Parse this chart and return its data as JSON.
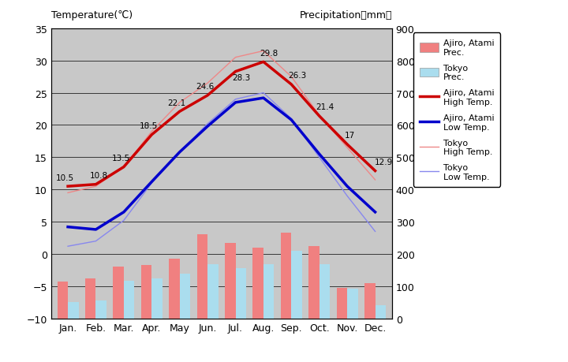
{
  "months": [
    "Jan.",
    "Feb.",
    "Mar.",
    "Apr.",
    "May",
    "Jun.",
    "Jul.",
    "Aug.",
    "Sep.",
    "Oct.",
    "Nov.",
    "Dec."
  ],
  "ajiro_high_temp": [
    10.5,
    10.8,
    13.5,
    18.5,
    22.1,
    24.6,
    28.3,
    29.8,
    26.3,
    21.4,
    17.0,
    12.9
  ],
  "ajiro_low_temp": [
    4.2,
    3.8,
    6.5,
    11.2,
    15.8,
    19.8,
    23.5,
    24.2,
    20.8,
    15.5,
    10.5,
    6.5
  ],
  "tokyo_high_temp": [
    9.5,
    10.5,
    13.5,
    19.0,
    23.5,
    26.5,
    30.5,
    31.5,
    27.5,
    21.5,
    16.5,
    11.5
  ],
  "tokyo_low_temp": [
    1.2,
    2.0,
    5.2,
    11.0,
    15.8,
    20.2,
    24.0,
    25.0,
    21.0,
    15.0,
    9.0,
    3.5
  ],
  "ajiro_prec_mm": [
    115,
    125,
    160,
    165,
    185,
    260,
    235,
    220,
    265,
    225,
    95,
    110
  ],
  "tokyo_prec_mm": [
    52,
    56,
    117,
    125,
    138,
    168,
    156,
    168,
    210,
    168,
    93,
    40
  ],
  "temp_ylim": [
    -10,
    35
  ],
  "prec_ylim": [
    0,
    900
  ],
  "temp_yticks": [
    -10,
    -5,
    0,
    5,
    10,
    15,
    20,
    25,
    30,
    35
  ],
  "prec_yticks": [
    0,
    100,
    200,
    300,
    400,
    500,
    600,
    700,
    800,
    900
  ],
  "ajiro_high_labels": [
    "10.5",
    "10.8",
    "13.5",
    "18.5",
    "22.1",
    "24.6",
    "28.3",
    "29.8",
    "26.3",
    "21.4",
    "17",
    "12.9"
  ],
  "label_offsets": [
    0.8,
    0.8,
    0.8,
    0.8,
    0.8,
    0.8,
    -1.5,
    0.8,
    0.8,
    0.8,
    0.8,
    0.8
  ],
  "label_hoffsets": [
    -0.1,
    0.1,
    -0.1,
    -0.1,
    -0.1,
    -0.1,
    0.2,
    0.2,
    0.2,
    0.2,
    0.1,
    0.3
  ],
  "bg_color": "#c8c8c8",
  "ajiro_prec_color": "#f08080",
  "tokyo_prec_color": "#aaddee",
  "ajiro_high_color": "#cc0000",
  "ajiro_low_color": "#0000cc",
  "tokyo_high_color": "#ee8888",
  "tokyo_low_color": "#8888ee",
  "bar_width": 0.38,
  "figsize": [
    7.2,
    4.6
  ],
  "dpi": 100
}
